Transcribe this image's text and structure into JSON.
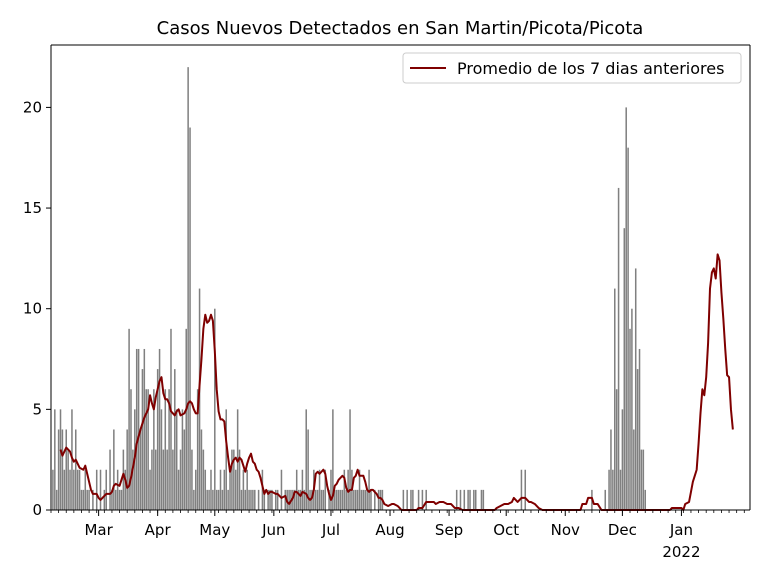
{
  "chart_data": {
    "type": "bar",
    "title": "Casos Nuevos Detectados en San Martin/Picota/Picota",
    "xlabel": "",
    "ylabel": "",
    "x_range": [
      "2021-02-04",
      "2022-02-06"
    ],
    "ylim": [
      0,
      23.1
    ],
    "grid": false,
    "legend_position": "top-right",
    "y_ticks": [
      0,
      5,
      10,
      15,
      20
    ],
    "x_ticks": [
      {
        "date": "2021-03-01",
        "label": "Mar"
      },
      {
        "date": "2021-04-01",
        "label": "Apr"
      },
      {
        "date": "2021-05-01",
        "label": "May"
      },
      {
        "date": "2021-06-01",
        "label": "Jun"
      },
      {
        "date": "2021-07-01",
        "label": "Jul"
      },
      {
        "date": "2021-08-01",
        "label": "Aug"
      },
      {
        "date": "2021-09-01",
        "label": "Sep"
      },
      {
        "date": "2021-10-01",
        "label": "Oct"
      },
      {
        "date": "2021-11-01",
        "label": "Nov"
      },
      {
        "date": "2021-12-01",
        "label": "Dec"
      },
      {
        "date": "2022-01-01",
        "label": "Jan"
      }
    ],
    "x_year_label": "2022",
    "daily_series": {
      "name": "",
      "color": "#808080",
      "start_date": "2021-02-05",
      "values": [
        2,
        5,
        1,
        4,
        5,
        4,
        2,
        4,
        3,
        2,
        5,
        2,
        4,
        2,
        2,
        1,
        1,
        2,
        1,
        1,
        0,
        1,
        0,
        2,
        0,
        2,
        0,
        1,
        2,
        0,
        3,
        1,
        4,
        1,
        2,
        1,
        1,
        3,
        2,
        4,
        9,
        6,
        3,
        5,
        8,
        8,
        4,
        7,
        8,
        6,
        6,
        2,
        3,
        6,
        3,
        7,
        8,
        5,
        3,
        6,
        3,
        6,
        9,
        3,
        7,
        5,
        2,
        3,
        5,
        4,
        9,
        22,
        19,
        3,
        1,
        2,
        6,
        11,
        4,
        3,
        2,
        1,
        1,
        2,
        1,
        10,
        1,
        1,
        2,
        1,
        2,
        5,
        1,
        2,
        3,
        3,
        2,
        5,
        3,
        1,
        2,
        1,
        2,
        1,
        1,
        1,
        1,
        0,
        1,
        0,
        2,
        1,
        0,
        1,
        1,
        1,
        0,
        1,
        1,
        0,
        2,
        0,
        1,
        1,
        1,
        1,
        1,
        1,
        2,
        1,
        1,
        2,
        1,
        5,
        4,
        1,
        1,
        2,
        1,
        1,
        2,
        1,
        1,
        2,
        0,
        1,
        2,
        5,
        1,
        1,
        1,
        1,
        1,
        2,
        1,
        2,
        5,
        2,
        1,
        1,
        1,
        2,
        1,
        1,
        1,
        1,
        2,
        1,
        0,
        1,
        0,
        1,
        1,
        1,
        0,
        0,
        0,
        0,
        0,
        0,
        0,
        0,
        0,
        0,
        1,
        0,
        1,
        0,
        1,
        1,
        0,
        0,
        1,
        0,
        1,
        0,
        1,
        0,
        0,
        0,
        0,
        0,
        0,
        0,
        0,
        0,
        0,
        0,
        0,
        0,
        0,
        0,
        1,
        0,
        1,
        0,
        1,
        0,
        1,
        1,
        0,
        1,
        1,
        0,
        0,
        1,
        1,
        0,
        0,
        0,
        0,
        0,
        0,
        0,
        0,
        0,
        0,
        0,
        0,
        0,
        0,
        0,
        0,
        0,
        0,
        0,
        2,
        0,
        2,
        0,
        0,
        0,
        0,
        0,
        0,
        0,
        0,
        0,
        0,
        0,
        0,
        0,
        0,
        0,
        0,
        0,
        0,
        0,
        0,
        0,
        0,
        0,
        0,
        0,
        0,
        0,
        0,
        0,
        0,
        0,
        0,
        0,
        0,
        1,
        0,
        0,
        0,
        0,
        0,
        0,
        1,
        0,
        2,
        4,
        2,
        11,
        6,
        16,
        2,
        5,
        14,
        20,
        18,
        9,
        10,
        4,
        12,
        7,
        8,
        3,
        3,
        1,
        0
      ]
    },
    "avg_series": {
      "name": "Promedio de los 7 dias anteriores",
      "color": "#7f0000",
      "points": [
        [
          "2021-02-09",
          3.0
        ],
        [
          "2021-02-10",
          2.7
        ],
        [
          "2021-02-11",
          2.9
        ],
        [
          "2021-02-12",
          3.1
        ],
        [
          "2021-02-13",
          3.0
        ],
        [
          "2021-02-14",
          2.9
        ],
        [
          "2021-02-15",
          2.6
        ],
        [
          "2021-02-16",
          2.4
        ],
        [
          "2021-02-17",
          2.5
        ],
        [
          "2021-02-19",
          2.1
        ],
        [
          "2021-02-21",
          2.0
        ],
        [
          "2021-02-22",
          2.2
        ],
        [
          "2021-02-23",
          1.8
        ],
        [
          "2021-02-24",
          1.4
        ],
        [
          "2021-02-25",
          1.0
        ],
        [
          "2021-02-26",
          0.8
        ],
        [
          "2021-02-28",
          0.8
        ],
        [
          "2021-03-01",
          0.6
        ],
        [
          "2021-03-02",
          0.5
        ],
        [
          "2021-03-03",
          0.6
        ],
        [
          "2021-03-05",
          0.8
        ],
        [
          "2021-03-07",
          0.8
        ],
        [
          "2021-03-08",
          0.9
        ],
        [
          "2021-03-09",
          1.2
        ],
        [
          "2021-03-10",
          1.3
        ],
        [
          "2021-03-12",
          1.2
        ],
        [
          "2021-03-13",
          1.5
        ],
        [
          "2021-03-14",
          1.8
        ],
        [
          "2021-03-15",
          1.5
        ],
        [
          "2021-03-16",
          1.1
        ],
        [
          "2021-03-17",
          1.2
        ],
        [
          "2021-03-18",
          1.6
        ],
        [
          "2021-03-20",
          2.6
        ],
        [
          "2021-03-21",
          3.3
        ],
        [
          "2021-03-23",
          4.0
        ],
        [
          "2021-03-24",
          4.3
        ],
        [
          "2021-03-25",
          4.6
        ],
        [
          "2021-03-27",
          5.0
        ],
        [
          "2021-03-28",
          5.7
        ],
        [
          "2021-03-29",
          5.3
        ],
        [
          "2021-03-30",
          5.0
        ],
        [
          "2021-03-31",
          5.6
        ],
        [
          "2021-04-01",
          6.0
        ],
        [
          "2021-04-02",
          6.4
        ],
        [
          "2021-04-03",
          6.6
        ],
        [
          "2021-04-04",
          5.8
        ],
        [
          "2021-04-05",
          5.5
        ],
        [
          "2021-04-06",
          5.5
        ],
        [
          "2021-04-07",
          5.3
        ],
        [
          "2021-04-08",
          4.9
        ],
        [
          "2021-04-10",
          4.7
        ],
        [
          "2021-04-11",
          4.9
        ],
        [
          "2021-04-12",
          5.0
        ],
        [
          "2021-04-13",
          4.7
        ],
        [
          "2021-04-15",
          4.8
        ],
        [
          "2021-04-16",
          5.0
        ],
        [
          "2021-04-17",
          5.3
        ],
        [
          "2021-04-18",
          5.4
        ],
        [
          "2021-04-19",
          5.3
        ],
        [
          "2021-04-20",
          5.0
        ],
        [
          "2021-04-21",
          4.8
        ],
        [
          "2021-04-22",
          4.8
        ],
        [
          "2021-04-23",
          6.2
        ],
        [
          "2021-04-24",
          7.5
        ],
        [
          "2021-04-25",
          9.0
        ],
        [
          "2021-04-26",
          9.7
        ],
        [
          "2021-04-27",
          9.3
        ],
        [
          "2021-04-28",
          9.4
        ],
        [
          "2021-04-29",
          9.7
        ],
        [
          "2021-04-30",
          9.4
        ],
        [
          "2021-05-01",
          7.9
        ],
        [
          "2021-05-02",
          6.0
        ],
        [
          "2021-05-03",
          4.9
        ],
        [
          "2021-05-04",
          4.5
        ],
        [
          "2021-05-05",
          4.5
        ],
        [
          "2021-05-06",
          4.4
        ],
        [
          "2021-05-07",
          3.4
        ],
        [
          "2021-05-08",
          2.6
        ],
        [
          "2021-05-09",
          1.9
        ],
        [
          "2021-05-10",
          2.3
        ],
        [
          "2021-05-11",
          2.5
        ],
        [
          "2021-05-12",
          2.6
        ],
        [
          "2021-05-13",
          2.4
        ],
        [
          "2021-05-14",
          2.6
        ],
        [
          "2021-05-15",
          2.5
        ],
        [
          "2021-05-16",
          2.2
        ],
        [
          "2021-05-17",
          1.9
        ],
        [
          "2021-05-18",
          2.3
        ],
        [
          "2021-05-19",
          2.6
        ],
        [
          "2021-05-20",
          2.8
        ],
        [
          "2021-05-21",
          2.4
        ],
        [
          "2021-05-22",
          2.3
        ],
        [
          "2021-05-23",
          2.0
        ],
        [
          "2021-05-24",
          1.9
        ],
        [
          "2021-05-25",
          1.6
        ],
        [
          "2021-05-26",
          1.2
        ],
        [
          "2021-05-27",
          0.8
        ],
        [
          "2021-05-28",
          1.0
        ],
        [
          "2021-05-29",
          0.8
        ],
        [
          "2021-05-30",
          0.9
        ],
        [
          "2021-05-31",
          0.9
        ],
        [
          "2021-06-02",
          0.8
        ],
        [
          "2021-06-03",
          0.8
        ],
        [
          "2021-06-04",
          0.7
        ],
        [
          "2021-06-05",
          0.6
        ],
        [
          "2021-06-07",
          0.7
        ],
        [
          "2021-06-08",
          0.4
        ],
        [
          "2021-06-09",
          0.3
        ],
        [
          "2021-06-11",
          0.6
        ],
        [
          "2021-06-12",
          0.9
        ],
        [
          "2021-06-13",
          0.9
        ],
        [
          "2021-06-14",
          0.8
        ],
        [
          "2021-06-15",
          0.7
        ],
        [
          "2021-06-16",
          0.9
        ],
        [
          "2021-06-18",
          0.8
        ],
        [
          "2021-06-19",
          0.6
        ],
        [
          "2021-06-20",
          0.5
        ],
        [
          "2021-06-21",
          0.6
        ],
        [
          "2021-06-22",
          1.0
        ],
        [
          "2021-06-23",
          1.8
        ],
        [
          "2021-06-24",
          1.9
        ],
        [
          "2021-06-25",
          1.8
        ],
        [
          "2021-06-26",
          1.9
        ],
        [
          "2021-06-27",
          2.0
        ],
        [
          "2021-06-28",
          1.8
        ],
        [
          "2021-06-29",
          1.2
        ],
        [
          "2021-06-30",
          0.8
        ],
        [
          "2021-07-01",
          0.5
        ],
        [
          "2021-07-02",
          0.7
        ],
        [
          "2021-07-03",
          1.2
        ],
        [
          "2021-07-04",
          1.3
        ],
        [
          "2021-07-05",
          1.5
        ],
        [
          "2021-07-06",
          1.6
        ],
        [
          "2021-07-07",
          1.7
        ],
        [
          "2021-07-08",
          1.6
        ],
        [
          "2021-07-09",
          1.1
        ],
        [
          "2021-07-10",
          0.9
        ],
        [
          "2021-07-11",
          1.0
        ],
        [
          "2021-07-12",
          1.0
        ],
        [
          "2021-07-13",
          1.6
        ],
        [
          "2021-07-14",
          1.7
        ],
        [
          "2021-07-15",
          2.0
        ],
        [
          "2021-07-16",
          1.7
        ],
        [
          "2021-07-17",
          1.7
        ],
        [
          "2021-07-18",
          1.7
        ],
        [
          "2021-07-19",
          1.4
        ],
        [
          "2021-07-20",
          1.0
        ],
        [
          "2021-07-21",
          0.9
        ],
        [
          "2021-07-22",
          1.0
        ],
        [
          "2021-07-23",
          1.0
        ],
        [
          "2021-07-24",
          0.9
        ],
        [
          "2021-07-25",
          0.8
        ],
        [
          "2021-07-26",
          0.6
        ],
        [
          "2021-07-27",
          0.6
        ],
        [
          "2021-07-28",
          0.5
        ],
        [
          "2021-07-29",
          0.3
        ],
        [
          "2021-07-31",
          0.2
        ],
        [
          "2021-08-02",
          0.3
        ],
        [
          "2021-08-03",
          0.3
        ],
        [
          "2021-08-05",
          0.2
        ],
        [
          "2021-08-06",
          0.1
        ],
        [
          "2021-08-07",
          0.0
        ],
        [
          "2021-08-15",
          0.0
        ],
        [
          "2021-08-16",
          0.1
        ],
        [
          "2021-08-18",
          0.1
        ],
        [
          "2021-08-20",
          0.4
        ],
        [
          "2021-08-22",
          0.4
        ],
        [
          "2021-08-24",
          0.4
        ],
        [
          "2021-08-25",
          0.3
        ],
        [
          "2021-08-27",
          0.4
        ],
        [
          "2021-08-29",
          0.4
        ],
        [
          "2021-08-31",
          0.3
        ],
        [
          "2021-09-02",
          0.3
        ],
        [
          "2021-09-04",
          0.1
        ],
        [
          "2021-09-06",
          0.1
        ],
        [
          "2021-09-08",
          0.0
        ],
        [
          "2021-09-25",
          0.0
        ],
        [
          "2021-09-26",
          0.1
        ],
        [
          "2021-09-28",
          0.2
        ],
        [
          "2021-09-30",
          0.3
        ],
        [
          "2021-10-02",
          0.3
        ],
        [
          "2021-10-04",
          0.4
        ],
        [
          "2021-10-05",
          0.6
        ],
        [
          "2021-10-07",
          0.4
        ],
        [
          "2021-10-09",
          0.6
        ],
        [
          "2021-10-11",
          0.6
        ],
        [
          "2021-10-13",
          0.4
        ],
        [
          "2021-10-14",
          0.4
        ],
        [
          "2021-10-16",
          0.3
        ],
        [
          "2021-10-18",
          0.1
        ],
        [
          "2021-10-20",
          0.0
        ],
        [
          "2021-11-09",
          0.0
        ],
        [
          "2021-11-10",
          0.3
        ],
        [
          "2021-11-12",
          0.3
        ],
        [
          "2021-11-13",
          0.6
        ],
        [
          "2021-11-14",
          0.6
        ],
        [
          "2021-11-15",
          0.6
        ],
        [
          "2021-11-16",
          0.3
        ],
        [
          "2021-11-18",
          0.3
        ],
        [
          "2021-11-20",
          0.0
        ],
        [
          "2021-12-26",
          0.0
        ],
        [
          "2021-12-27",
          0.1
        ],
        [
          "2021-12-28",
          0.1
        ],
        [
          "2021-12-30",
          0.1
        ],
        [
          "2022-01-01",
          0.1
        ],
        [
          "2022-01-02",
          0.0
        ],
        [
          "2022-01-03",
          0.3
        ],
        [
          "2022-01-05",
          0.4
        ],
        [
          "2022-01-06",
          0.9
        ],
        [
          "2022-01-07",
          1.4
        ],
        [
          "2022-01-08",
          1.7
        ],
        [
          "2022-01-09",
          2.0
        ],
        [
          "2022-01-10",
          3.3
        ],
        [
          "2022-01-11",
          4.8
        ],
        [
          "2022-01-12",
          6.0
        ],
        [
          "2022-01-13",
          5.7
        ],
        [
          "2022-01-14",
          6.6
        ],
        [
          "2022-01-15",
          8.3
        ],
        [
          "2022-01-16",
          11.0
        ],
        [
          "2022-01-17",
          11.8
        ],
        [
          "2022-01-18",
          12.0
        ],
        [
          "2022-01-19",
          11.5
        ],
        [
          "2022-01-20",
          12.7
        ],
        [
          "2022-01-21",
          12.4
        ],
        [
          "2022-01-22",
          10.8
        ],
        [
          "2022-01-23",
          9.5
        ],
        [
          "2022-01-24",
          8.0
        ],
        [
          "2022-01-25",
          6.7
        ],
        [
          "2022-01-26",
          6.6
        ],
        [
          "2022-01-27",
          5.0
        ],
        [
          "2022-01-28",
          4.0
        ]
      ]
    }
  }
}
